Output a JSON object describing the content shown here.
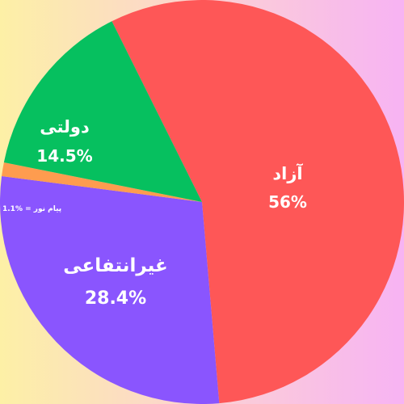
{
  "chart_data": {
    "type": "pie",
    "title": "",
    "slices": [
      {
        "label": "آزاد",
        "value": 56,
        "display": "56%",
        "color": "#fe5757"
      },
      {
        "label": "غیرانتفاعی",
        "value": 28.4,
        "display": "28.4%",
        "color": "#8a55fe"
      },
      {
        "label": "پیام نور",
        "value": 1.1,
        "display": "پیام نور = %1.1",
        "color": "#fe9c4f"
      },
      {
        "label": "دولتی",
        "value": 14.5,
        "display": "14.5%",
        "color": "#06c05f"
      }
    ]
  }
}
